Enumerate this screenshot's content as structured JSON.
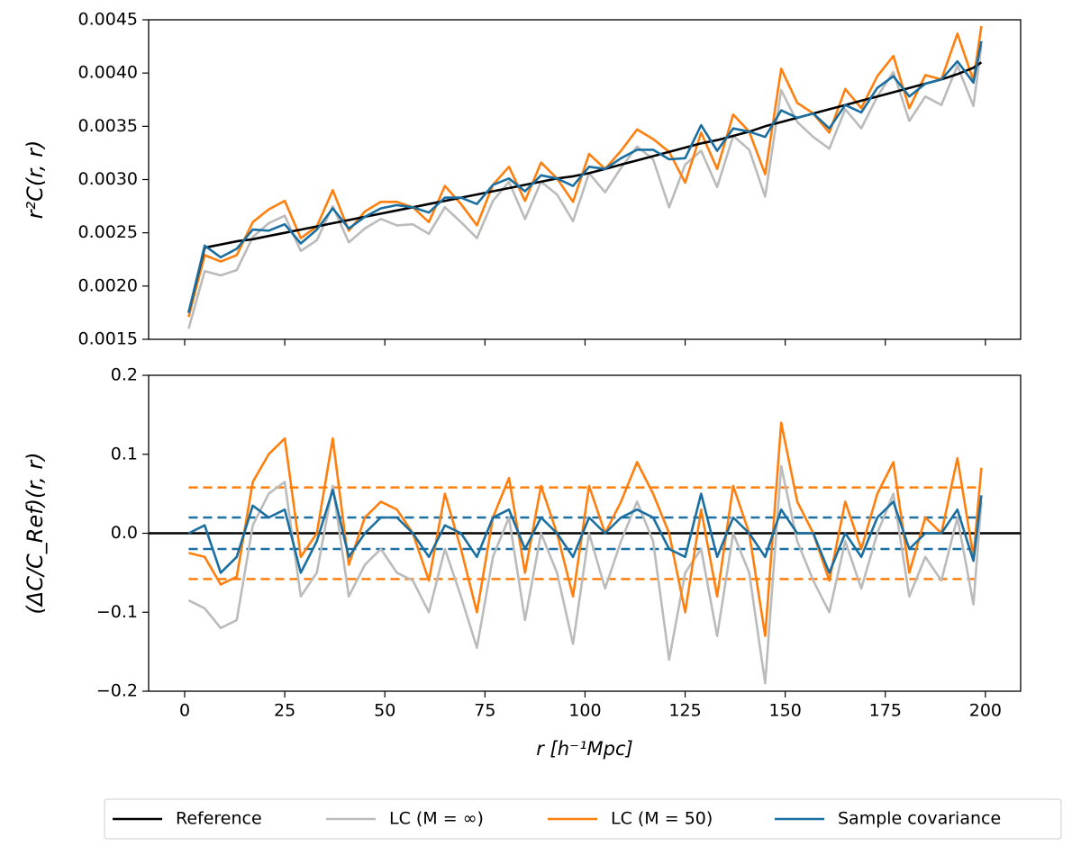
{
  "chart_data": [
    {
      "type": "line",
      "ylabel": "r²C(r, r)",
      "xlim": [
        -9,
        208.8
      ],
      "ylim": [
        0.0015,
        0.0045
      ],
      "yticks": [
        0.0015,
        {
          "value": 0.002,
          "label": "0.0020"
        },
        0.0025,
        {
          "value": 0.003,
          "label": "0.0030"
        },
        0.0035,
        {
          "value": 0.004,
          "label": "0.0040"
        },
        0.0045
      ],
      "x": [
        1,
        5,
        9,
        13,
        17,
        21,
        25,
        29,
        33,
        37,
        41,
        45,
        49,
        53,
        57,
        61,
        65,
        69,
        73,
        77,
        81,
        85,
        89,
        93,
        97,
        101,
        105,
        109,
        113,
        117,
        121,
        125,
        129,
        133,
        137,
        141,
        145,
        149,
        153,
        157,
        161,
        165,
        169,
        173,
        177,
        181,
        185,
        189,
        193,
        197,
        199
      ],
      "series": [
        {
          "name": "Reference",
          "color": "#000000",
          "values": [
            0.00175,
            0.00236,
            0.00239,
            0.00242,
            0.00244,
            0.00247,
            0.0025,
            0.00253,
            0.00256,
            0.00259,
            0.00262,
            0.00265,
            0.00268,
            0.00271,
            0.00274,
            0.00277,
            0.0028,
            0.00283,
            0.00286,
            0.00289,
            0.00292,
            0.00295,
            0.00298,
            0.00301,
            0.00303,
            0.00306,
            0.0031,
            0.00314,
            0.00318,
            0.00322,
            0.00326,
            0.0033,
            0.00334,
            0.00337,
            0.00341,
            0.00345,
            0.0035,
            0.00354,
            0.00358,
            0.00362,
            0.00366,
            0.0037,
            0.00374,
            0.00378,
            0.00382,
            0.00386,
            0.0039,
            0.00394,
            0.00399,
            0.00405,
            0.0041
          ]
        },
        {
          "name": "LC (M = ∞)",
          "color": "#bbbbbb",
          "values": [
            0.0016,
            0.00214,
            0.0021,
            0.00215,
            0.00246,
            0.00259,
            0.00266,
            0.00233,
            0.00243,
            0.00275,
            0.00241,
            0.00254,
            0.00263,
            0.00257,
            0.00258,
            0.00249,
            0.00274,
            0.0026,
            0.00245,
            0.0028,
            0.00298,
            0.00263,
            0.00298,
            0.00286,
            0.00261,
            0.00306,
            0.00288,
            0.00311,
            0.00331,
            0.00319,
            0.00274,
            0.00314,
            0.00327,
            0.00293,
            0.00341,
            0.00328,
            0.00284,
            0.00384,
            0.00354,
            0.0034,
            0.00329,
            0.00366,
            0.00348,
            0.00378,
            0.00401,
            0.00355,
            0.00378,
            0.0037,
            0.00407,
            0.00369,
            0.00426
          ]
        },
        {
          "name": "LC (M = 50)",
          "color": "#ff7f0e",
          "values": [
            0.00171,
            0.00229,
            0.00223,
            0.00229,
            0.0026,
            0.00272,
            0.0028,
            0.00245,
            0.00256,
            0.0029,
            0.00252,
            0.0027,
            0.00279,
            0.00279,
            0.00274,
            0.0026,
            0.00294,
            0.00277,
            0.00257,
            0.00295,
            0.00312,
            0.0028,
            0.00316,
            0.00301,
            0.00279,
            0.00324,
            0.0031,
            0.00327,
            0.00347,
            0.00338,
            0.00326,
            0.00297,
            0.00344,
            0.0031,
            0.00361,
            0.00345,
            0.00305,
            0.00404,
            0.00372,
            0.00362,
            0.00344,
            0.00385,
            0.00367,
            0.00397,
            0.00416,
            0.00367,
            0.00398,
            0.00394,
            0.00437,
            0.00393,
            0.00444
          ]
        },
        {
          "name": "Sample covariance",
          "color": "#1a6fa0",
          "values": [
            0.00175,
            0.00238,
            0.00227,
            0.00235,
            0.00253,
            0.00252,
            0.00258,
            0.0024,
            0.00253,
            0.00273,
            0.00254,
            0.00265,
            0.00273,
            0.00276,
            0.00274,
            0.00269,
            0.00283,
            0.00283,
            0.00277,
            0.00295,
            0.00301,
            0.00289,
            0.00304,
            0.00301,
            0.00294,
            0.00312,
            0.0031,
            0.0032,
            0.00328,
            0.00328,
            0.00319,
            0.0032,
            0.00351,
            0.00327,
            0.00348,
            0.00345,
            0.0034,
            0.00365,
            0.00358,
            0.00362,
            0.00348,
            0.0037,
            0.00363,
            0.00386,
            0.00397,
            0.00378,
            0.0039,
            0.00394,
            0.00411,
            0.00391,
            0.0043
          ]
        }
      ]
    },
    {
      "type": "line",
      "ylabel": "(ΔC/C_Ref)(r, r)",
      "xlabel": "r [h⁻¹Mpc]",
      "xlim": [
        -9,
        208.8
      ],
      "ylim": [
        -0.2,
        0.2
      ],
      "xticks": [
        0,
        25,
        50,
        75,
        100,
        125,
        150,
        175,
        200
      ],
      "yticks": [
        {
          "value": -0.2,
          "label": "−0.2"
        },
        {
          "value": -0.1,
          "label": "−0.1"
        },
        {
          "value": 0,
          "label": "0.0"
        },
        0.1,
        0.2
      ],
      "x": [
        1,
        5,
        9,
        13,
        17,
        21,
        25,
        29,
        33,
        37,
        41,
        45,
        49,
        53,
        57,
        61,
        65,
        69,
        73,
        77,
        81,
        85,
        89,
        93,
        97,
        101,
        105,
        109,
        113,
        117,
        121,
        125,
        129,
        133,
        137,
        141,
        145,
        149,
        153,
        157,
        161,
        165,
        169,
        173,
        177,
        181,
        185,
        189,
        193,
        197,
        199
      ],
      "hlines": [
        {
          "value": 0.058,
          "color": "#ff7f0e",
          "dashed": true
        },
        {
          "value": -0.058,
          "color": "#ff7f0e",
          "dashed": true
        },
        {
          "value": 0.02,
          "color": "#1a6fa0",
          "dashed": true
        },
        {
          "value": -0.02,
          "color": "#1a6fa0",
          "dashed": true
        },
        {
          "value": 0,
          "color": "#000000",
          "dashed": false
        }
      ],
      "series": [
        {
          "color": "#bbbbbb",
          "values": [
            -0.085,
            -0.095,
            -0.12,
            -0.11,
            0.01,
            0.05,
            0.065,
            -0.08,
            -0.05,
            0.06,
            -0.08,
            -0.04,
            -0.02,
            -0.05,
            -0.06,
            -0.1,
            -0.02,
            -0.08,
            -0.145,
            -0.03,
            0.02,
            -0.11,
            0.0,
            -0.05,
            -0.14,
            0.0,
            -0.07,
            -0.01,
            0.04,
            -0.01,
            -0.16,
            -0.05,
            -0.02,
            -0.13,
            0.0,
            -0.05,
            -0.19,
            0.085,
            -0.01,
            -0.06,
            -0.1,
            -0.01,
            -0.07,
            0.0,
            0.05,
            -0.08,
            -0.03,
            -0.06,
            0.02,
            -0.09,
            0.04
          ]
        },
        {
          "color": "#ff7f0e",
          "values": [
            -0.025,
            -0.03,
            -0.065,
            -0.055,
            0.065,
            0.1,
            0.12,
            -0.03,
            0.0,
            0.12,
            -0.04,
            0.02,
            0.04,
            0.03,
            0.0,
            -0.06,
            0.05,
            -0.02,
            -0.1,
            0.02,
            0.07,
            -0.05,
            0.06,
            0.0,
            -0.08,
            0.06,
            0.0,
            0.04,
            0.09,
            0.05,
            0.0,
            -0.1,
            0.03,
            -0.08,
            0.06,
            0.0,
            -0.13,
            0.14,
            0.04,
            0.0,
            -0.06,
            0.04,
            -0.02,
            0.05,
            0.09,
            -0.05,
            0.02,
            0.0,
            0.095,
            -0.03,
            0.083
          ]
        },
        {
          "color": "#1a6fa0",
          "values": [
            0.0,
            0.01,
            -0.05,
            -0.03,
            0.035,
            0.02,
            0.03,
            -0.05,
            -0.01,
            0.055,
            -0.03,
            0.0,
            0.02,
            0.02,
            0.0,
            -0.03,
            0.01,
            0.0,
            -0.03,
            0.02,
            0.03,
            -0.02,
            0.02,
            0.0,
            -0.03,
            0.02,
            0.0,
            0.02,
            0.03,
            0.02,
            -0.02,
            -0.03,
            0.05,
            -0.03,
            0.02,
            0.0,
            -0.03,
            0.03,
            0.0,
            0.0,
            -0.05,
            0.0,
            -0.03,
            0.02,
            0.04,
            -0.02,
            0.0,
            0.0,
            0.03,
            -0.035,
            0.048
          ]
        }
      ]
    }
  ]
}
